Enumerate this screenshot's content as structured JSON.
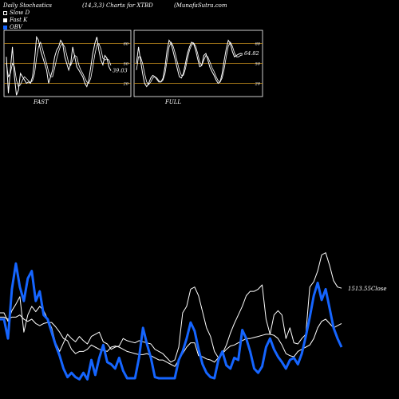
{
  "header": {
    "title": "Daily Stochastics",
    "params": "(14,3,3) Charts for XTBD",
    "site": "(MunafaSutra.com"
  },
  "legend": [
    {
      "label": "Slow  D",
      "style": "hollow"
    },
    {
      "label": "Fast K",
      "style": "white"
    },
    {
      "label": "OBV",
      "style": "blue"
    }
  ],
  "colors": {
    "background": "#000000",
    "grid": "#c08a1c",
    "line": "#ffffff",
    "obv": "#1565ff"
  },
  "chart_data": [
    {
      "type": "line",
      "name": "FAST",
      "panel_label": "FAST",
      "ylim": [
        0,
        100
      ],
      "levels": [
        20,
        50,
        80
      ],
      "level_labels": [
        "20",
        "50",
        "80"
      ],
      "last_value_label": "39.03",
      "series": [
        {
          "name": "Fast K",
          "values": [
            60,
            5,
            40,
            75,
            30,
            2,
            10,
            35,
            30,
            25,
            20,
            22,
            20,
            30,
            55,
            90,
            85,
            70,
            60,
            50,
            40,
            20,
            30,
            40,
            60,
            70,
            75,
            85,
            80,
            60,
            50,
            40,
            50,
            75,
            60,
            45,
            40,
            35,
            30,
            20,
            15,
            25,
            45,
            65,
            80,
            90,
            70,
            55,
            48,
            62,
            58,
            45,
            39.03
          ]
        },
        {
          "name": "Slow D",
          "values": [
            50,
            30,
            35,
            50,
            45,
            25,
            15,
            18,
            25,
            30,
            27,
            24,
            21,
            24,
            35,
            58,
            75,
            82,
            72,
            60,
            50,
            37,
            30,
            30,
            43,
            57,
            68,
            77,
            80,
            75,
            63,
            50,
            47,
            55,
            62,
            60,
            48,
            40,
            35,
            28,
            22,
            20,
            28,
            45,
            63,
            78,
            80,
            72,
            58,
            55,
            57,
            55,
            47
          ]
        }
      ]
    },
    {
      "type": "line",
      "name": "FULL",
      "panel_label": "FULL",
      "ylim": [
        0,
        100
      ],
      "levels": [
        20,
        50,
        80
      ],
      "level_labels": [
        "20",
        "50",
        "80"
      ],
      "last_value_label": "64.82",
      "series": [
        {
          "name": "Fast K",
          "values": [
            50,
            75,
            55,
            35,
            20,
            15,
            20,
            28,
            32,
            30,
            26,
            22,
            22,
            28,
            45,
            70,
            85,
            80,
            68,
            55,
            42,
            30,
            28,
            35,
            50,
            65,
            75,
            82,
            80,
            70,
            57,
            45,
            47,
            62,
            65,
            55,
            44,
            38,
            32,
            25,
            20,
            22,
            35,
            55,
            72,
            85,
            80,
            68,
            60,
            62,
            64,
            65,
            64.82
          ]
        },
        {
          "name": "Slow D",
          "values": [
            40,
            60,
            60,
            50,
            35,
            22,
            18,
            22,
            28,
            30,
            28,
            24,
            22,
            25,
            35,
            55,
            75,
            82,
            76,
            65,
            52,
            40,
            32,
            32,
            42,
            57,
            70,
            78,
            81,
            76,
            65,
            52,
            47,
            55,
            62,
            60,
            52,
            44,
            38,
            30,
            24,
            22,
            28,
            42,
            60,
            76,
            82,
            76,
            66,
            60,
            60,
            62,
            63
          ]
        }
      ]
    },
    {
      "type": "line",
      "name": "OBV",
      "right_label": "1513.55Close",
      "series": [
        {
          "name": "Close",
          "values": [
            64,
            64,
            56,
            66,
            72,
            79,
            46,
            62,
            70,
            65,
            70,
            66,
            58,
            50,
            36,
            28,
            36,
            44,
            40,
            37,
            42,
            38,
            35,
            42,
            44,
            46,
            37,
            35,
            30,
            32,
            33,
            40,
            38,
            37,
            36,
            38,
            37,
            36,
            35,
            30,
            28,
            26,
            22,
            18,
            20,
            32,
            64,
            70,
            86,
            88,
            80,
            65,
            50,
            42,
            28,
            22,
            26,
            34,
            45,
            54,
            62,
            70,
            80,
            84,
            84,
            86,
            90,
            58,
            44,
            62,
            66,
            62,
            40,
            50,
            36,
            35,
            40,
            44,
            88,
            93,
            103,
            118,
            120,
            108,
            94,
            88,
            87
          ]
        },
        {
          "name": "Slow D",
          "values": [
            60,
            60,
            58,
            60,
            60,
            62,
            58,
            56,
            58,
            54,
            52,
            54,
            55,
            55,
            51,
            46,
            40,
            38,
            30,
            26,
            28,
            28,
            30,
            34,
            32,
            30,
            29,
            28,
            32,
            33,
            32,
            30,
            28,
            27,
            26,
            25,
            25,
            26,
            24,
            22,
            20,
            20,
            18,
            16,
            14,
            20,
            26,
            32,
            36,
            36,
            24,
            23,
            21,
            20,
            18,
            22,
            26,
            30,
            33,
            34,
            36,
            38,
            40,
            40,
            41,
            42,
            43,
            44,
            44,
            43,
            40,
            34,
            26,
            24,
            23,
            28,
            30,
            32,
            34,
            40,
            50,
            56,
            58,
            54,
            50,
            52,
            54
          ]
        },
        {
          "name": "OBV",
          "values": [
            58,
            58,
            40,
            86,
            110,
            88,
            75,
            96,
            103,
            75,
            84,
            62,
            58,
            46,
            34,
            24,
            12,
            4,
            8,
            4,
            2,
            8,
            2,
            20,
            6,
            22,
            34,
            18,
            16,
            12,
            22,
            10,
            3,
            3,
            3,
            22,
            50,
            35,
            22,
            4,
            3,
            3,
            3,
            3,
            3,
            20,
            28,
            40,
            55,
            47,
            30,
            16,
            8,
            4,
            3,
            20,
            28,
            15,
            12,
            22,
            20,
            48,
            40,
            28,
            12,
            8,
            14,
            32,
            40,
            30,
            23,
            18,
            12,
            20,
            22,
            16,
            26,
            42,
            60,
            80,
            92,
            76,
            86,
            68,
            50,
            40,
            32
          ]
        }
      ]
    }
  ]
}
